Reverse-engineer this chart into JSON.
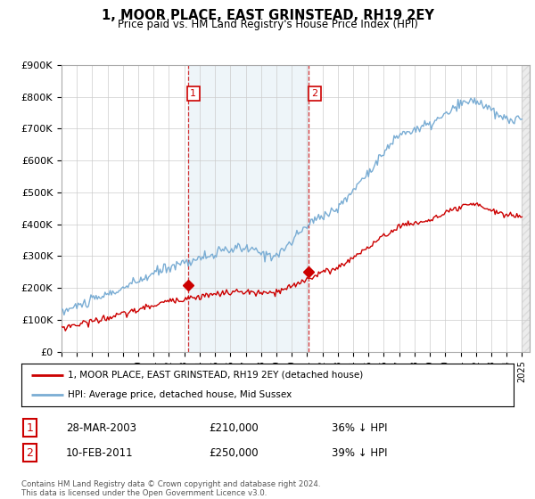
{
  "title": "1, MOOR PLACE, EAST GRINSTEAD, RH19 2EY",
  "subtitle": "Price paid vs. HM Land Registry's House Price Index (HPI)",
  "ylabel_ticks": [
    "£0",
    "£100K",
    "£200K",
    "£300K",
    "£400K",
    "£500K",
    "£600K",
    "£700K",
    "£800K",
    "£900K"
  ],
  "ylim": [
    0,
    900000
  ],
  "xlim_start": 1995.0,
  "xlim_end": 2025.5,
  "legend_line1": "1, MOOR PLACE, EAST GRINSTEAD, RH19 2EY (detached house)",
  "legend_line2": "HPI: Average price, detached house, Mid Sussex",
  "transaction1_date": "28-MAR-2003",
  "transaction1_price": "£210,000",
  "transaction1_hpi": "36% ↓ HPI",
  "transaction1_year": 2003.23,
  "transaction1_value": 210000,
  "transaction2_date": "10-FEB-2011",
  "transaction2_price": "£250,000",
  "transaction2_hpi": "39% ↓ HPI",
  "transaction2_year": 2011.12,
  "transaction2_value": 250000,
  "hpi_color": "#7aadd4",
  "price_color": "#cc0000",
  "plot_bg": "#ffffff",
  "footnote": "Contains HM Land Registry data © Crown copyright and database right 2024.\nThis data is licensed under the Open Government Licence v3.0.",
  "grid_color": "#cccccc",
  "hpi_seed": 10,
  "price_seed": 20
}
